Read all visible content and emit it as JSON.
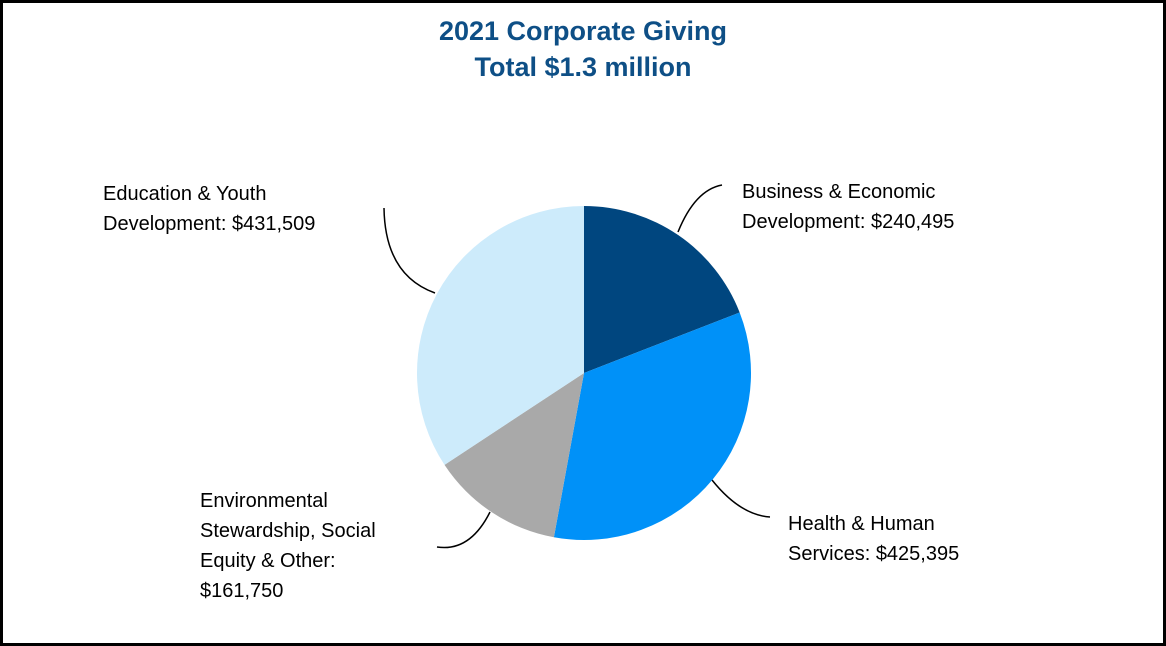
{
  "chart_data": {
    "type": "pie",
    "title": "2021 Corporate Giving",
    "subtitle": "Total $1.3 million",
    "categories": [
      "Business & Economic Development:",
      "Health & Human Services:",
      "Environmental Stewardship, Social Equity & Other:",
      "Education & Youth Development:"
    ],
    "values": [
      240495,
      425395,
      161750,
      431509
    ],
    "value_labels": [
      "$240,495",
      "$425,395",
      "$161,750",
      "$431,509"
    ],
    "colors": [
      "#00467f",
      "#0091f8",
      "#a9a9a9",
      "#cdebfb"
    ]
  }
}
